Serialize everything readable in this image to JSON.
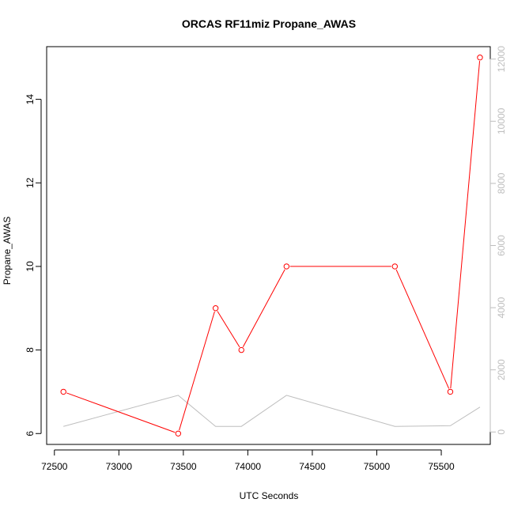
{
  "chart_data": {
    "type": "line",
    "title": "ORCAS RF11miz Propane_AWAS",
    "xlabel": "UTC Seconds",
    "ylabel": "Propane_AWAS",
    "xlim": [
      72440,
      75880
    ],
    "ylim": [
      5.74,
      15.26
    ],
    "y2lim": [
      -400,
      12400
    ],
    "x_ticks": [
      72500,
      73000,
      73500,
      74000,
      74500,
      75000,
      75500
    ],
    "y_ticks": [
      6,
      8,
      10,
      12,
      14
    ],
    "y2_ticks": [
      0,
      2000,
      4000,
      6000,
      8000,
      10000,
      12000
    ],
    "grid": false,
    "series": [
      {
        "axis": "left",
        "color": "#ff0000",
        "marker": "open-circle",
        "x": [
          72570,
          73460,
          73750,
          73950,
          74300,
          75140,
          75570,
          75800
        ],
        "values": [
          7,
          6,
          9,
          8,
          10,
          10,
          7,
          15
        ]
      },
      {
        "axis": "right",
        "color": "#bebebe",
        "marker": "none",
        "x": [
          72570,
          73460,
          73750,
          73950,
          74300,
          75140,
          75570,
          75800
        ],
        "values": [
          180,
          1180,
          180,
          180,
          1180,
          180,
          200,
          800
        ]
      }
    ]
  }
}
